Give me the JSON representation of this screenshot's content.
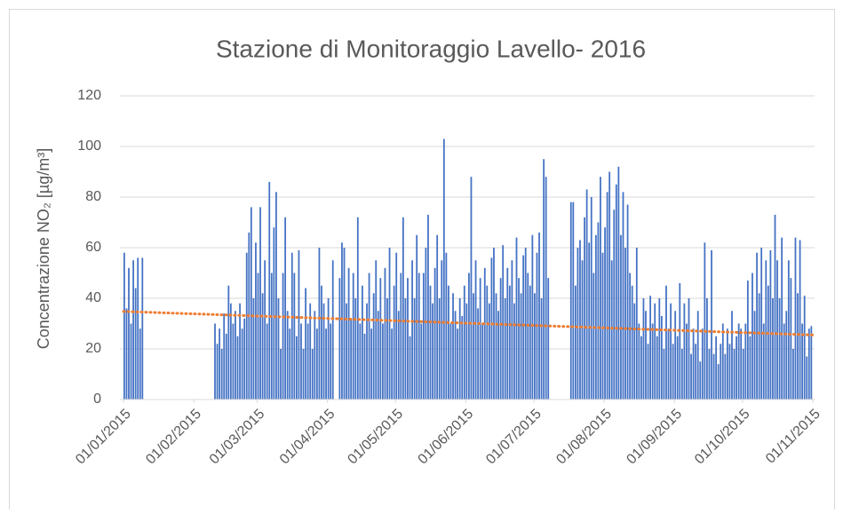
{
  "chart_data": {
    "type": "bar",
    "title": "Stazione di Monitoraggio Lavello- 2016",
    "y_label": "Concentrazione NO₂ [µg/m³]",
    "color": "#4472c4",
    "grid": true,
    "ylim": [
      0,
      120
    ],
    "yticks": [
      0,
      20,
      40,
      60,
      80,
      100,
      120
    ],
    "xlim": [
      "01/01/2015",
      "01/11/2015"
    ],
    "xticks": [
      "01/01/2015",
      "01/02/2015",
      "01/03/2015",
      "01/04/2015",
      "01/05/2015",
      "01/06/2015",
      "01/07/2015",
      "01/08/2015",
      "01/09/2015",
      "01/10/2015",
      "01/11/2015"
    ],
    "trendline": {
      "color": "#ed7d31",
      "values": [
        34.8,
        25.5
      ]
    },
    "x": [
      "01/01/2015",
      "02/01/2015",
      "03/01/2015",
      "04/01/2015",
      "05/01/2015",
      "06/01/2015",
      "07/01/2015",
      "08/01/2015",
      "09/01/2015",
      "10/01/2015",
      "11/01/2015",
      "12/01/2015",
      "13/01/2015",
      "14/01/2015",
      "15/01/2015",
      "16/01/2015",
      "17/01/2015",
      "18/01/2015",
      "19/01/2015",
      "20/01/2015",
      "21/01/2015",
      "22/01/2015",
      "23/01/2015",
      "24/01/2015",
      "25/01/2015",
      "26/01/2015",
      "27/01/2015",
      "28/01/2015",
      "29/01/2015",
      "30/01/2015",
      "31/01/2015",
      "01/02/2015",
      "02/02/2015",
      "03/02/2015",
      "04/02/2015",
      "05/02/2015",
      "06/02/2015",
      "07/02/2015",
      "08/02/2015",
      "09/02/2015",
      "10/02/2015",
      "11/02/2015",
      "12/02/2015",
      "13/02/2015",
      "14/02/2015",
      "15/02/2015",
      "16/02/2015",
      "17/02/2015",
      "18/02/2015",
      "19/02/2015",
      "20/02/2015",
      "21/02/2015",
      "22/02/2015",
      "23/02/2015",
      "24/02/2015",
      "25/02/2015",
      "26/02/2015",
      "27/02/2015",
      "28/02/2015",
      "01/03/2015",
      "02/03/2015",
      "03/03/2015",
      "04/03/2015",
      "05/03/2015",
      "06/03/2015",
      "07/03/2015",
      "08/03/2015",
      "09/03/2015",
      "10/03/2015",
      "11/03/2015",
      "12/03/2015",
      "13/03/2015",
      "14/03/2015",
      "15/03/2015",
      "16/03/2015",
      "17/03/2015",
      "18/03/2015",
      "19/03/2015",
      "20/03/2015",
      "21/03/2015",
      "22/03/2015",
      "23/03/2015",
      "24/03/2015",
      "25/03/2015",
      "26/03/2015",
      "27/03/2015",
      "28/03/2015",
      "29/03/2015",
      "30/03/2015",
      "31/03/2015",
      "01/04/2015",
      "02/04/2015",
      "03/04/2015",
      "04/04/2015",
      "05/04/2015",
      "06/04/2015",
      "07/04/2015",
      "08/04/2015",
      "09/04/2015",
      "10/04/2015",
      "11/04/2015",
      "12/04/2015",
      "13/04/2015",
      "14/04/2015",
      "15/04/2015",
      "16/04/2015",
      "17/04/2015",
      "18/04/2015",
      "19/04/2015",
      "20/04/2015",
      "21/04/2015",
      "22/04/2015",
      "23/04/2015",
      "24/04/2015",
      "25/04/2015",
      "26/04/2015",
      "27/04/2015",
      "28/04/2015",
      "29/04/2015",
      "30/04/2015",
      "01/05/2015",
      "02/05/2015",
      "03/05/2015",
      "04/05/2015",
      "05/05/2015",
      "06/05/2015",
      "07/05/2015",
      "08/05/2015",
      "09/05/2015",
      "10/05/2015",
      "11/05/2015",
      "12/05/2015",
      "13/05/2015",
      "14/05/2015",
      "15/05/2015",
      "16/05/2015",
      "17/05/2015",
      "18/05/2015",
      "19/05/2015",
      "20/05/2015",
      "21/05/2015",
      "22/05/2015",
      "23/05/2015",
      "24/05/2015",
      "25/05/2015",
      "26/05/2015",
      "27/05/2015",
      "28/05/2015",
      "29/05/2015",
      "30/05/2015",
      "31/05/2015",
      "01/06/2015",
      "02/06/2015",
      "03/06/2015",
      "04/06/2015",
      "05/06/2015",
      "06/06/2015",
      "07/06/2015",
      "08/06/2015",
      "09/06/2015",
      "10/06/2015",
      "11/06/2015",
      "12/06/2015",
      "13/06/2015",
      "14/06/2015",
      "15/06/2015",
      "16/06/2015",
      "17/06/2015",
      "18/06/2015",
      "19/06/2015",
      "20/06/2015",
      "21/06/2015",
      "22/06/2015",
      "23/06/2015",
      "24/06/2015",
      "25/06/2015",
      "26/06/2015",
      "27/06/2015",
      "28/06/2015",
      "29/06/2015",
      "30/06/2015",
      "01/07/2015",
      "02/07/2015",
      "03/07/2015",
      "04/07/2015",
      "05/07/2015",
      "06/07/2015",
      "07/07/2015",
      "08/07/2015",
      "09/07/2015",
      "10/07/2015",
      "11/07/2015",
      "12/07/2015",
      "13/07/2015",
      "14/07/2015",
      "15/07/2015",
      "16/07/2015",
      "17/07/2015",
      "18/07/2015",
      "19/07/2015",
      "20/07/2015",
      "21/07/2015",
      "22/07/2015",
      "23/07/2015",
      "24/07/2015",
      "25/07/2015",
      "26/07/2015",
      "27/07/2015",
      "28/07/2015",
      "29/07/2015",
      "30/07/2015",
      "31/07/2015",
      "01/08/2015",
      "02/08/2015",
      "03/08/2015",
      "04/08/2015",
      "05/08/2015",
      "06/08/2015",
      "07/08/2015",
      "08/08/2015",
      "09/08/2015",
      "10/08/2015",
      "11/08/2015",
      "12/08/2015",
      "13/08/2015",
      "14/08/2015",
      "15/08/2015",
      "16/08/2015",
      "17/08/2015",
      "18/08/2015",
      "19/08/2015",
      "20/08/2015",
      "21/08/2015",
      "22/08/2015",
      "23/08/2015",
      "24/08/2015",
      "25/08/2015",
      "26/08/2015",
      "27/08/2015",
      "28/08/2015",
      "29/08/2015",
      "30/08/2015",
      "31/08/2015",
      "01/09/2015",
      "02/09/2015",
      "03/09/2015",
      "04/09/2015",
      "05/09/2015",
      "06/09/2015",
      "07/09/2015",
      "08/09/2015",
      "09/09/2015",
      "10/09/2015",
      "11/09/2015",
      "12/09/2015",
      "13/09/2015",
      "14/09/2015",
      "15/09/2015",
      "16/09/2015",
      "17/09/2015",
      "18/09/2015",
      "19/09/2015",
      "20/09/2015",
      "21/09/2015",
      "22/09/2015",
      "23/09/2015",
      "24/09/2015",
      "25/09/2015",
      "26/09/2015",
      "27/09/2015",
      "28/09/2015",
      "29/09/2015",
      "30/09/2015",
      "01/10/2015",
      "02/10/2015",
      "03/10/2015",
      "04/10/2015",
      "05/10/2015",
      "06/10/2015",
      "07/10/2015",
      "08/10/2015",
      "09/10/2015",
      "10/10/2015",
      "11/10/2015",
      "12/10/2015",
      "13/10/2015",
      "14/10/2015",
      "15/10/2015",
      "16/10/2015",
      "17/10/2015",
      "18/10/2015",
      "19/10/2015",
      "20/10/2015",
      "21/10/2015",
      "22/10/2015",
      "23/10/2015",
      "24/10/2015",
      "25/10/2015",
      "26/10/2015",
      "27/10/2015",
      "28/10/2015",
      "29/10/2015",
      "30/10/2015",
      "31/10/2015"
    ],
    "values": [
      58,
      36,
      52,
      30,
      55,
      44,
      56,
      28,
      56,
      null,
      null,
      null,
      null,
      null,
      null,
      null,
      null,
      null,
      null,
      null,
      null,
      null,
      null,
      null,
      null,
      null,
      null,
      null,
      null,
      null,
      null,
      null,
      null,
      null,
      null,
      null,
      null,
      null,
      null,
      null,
      30,
      22,
      28,
      20,
      34,
      26,
      45,
      38,
      30,
      35,
      25,
      38,
      28,
      32,
      58,
      66,
      76,
      40,
      62,
      50,
      76,
      42,
      55,
      30,
      86,
      50,
      68,
      82,
      40,
      20,
      50,
      72,
      35,
      28,
      58,
      50,
      25,
      59,
      30,
      20,
      44,
      30,
      38,
      20,
      35,
      28,
      60,
      45,
      38,
      28,
      40,
      30,
      55,
      null,
      null,
      48,
      62,
      60,
      38,
      52,
      32,
      50,
      40,
      72,
      30,
      45,
      26,
      38,
      50,
      28,
      42,
      55,
      35,
      48,
      30,
      52,
      40,
      60,
      28,
      45,
      58,
      35,
      50,
      72,
      40,
      48,
      25,
      55,
      40,
      65,
      50,
      30,
      50,
      60,
      73,
      45,
      38,
      52,
      65,
      40,
      55,
      103,
      58,
      45,
      30,
      42,
      35,
      28,
      40,
      33,
      45,
      38,
      50,
      88,
      42,
      55,
      36,
      48,
      30,
      52,
      45,
      38,
      56,
      60,
      42,
      35,
      48,
      61,
      40,
      52,
      45,
      55,
      38,
      64,
      48,
      42,
      57,
      60,
      50,
      45,
      65,
      42,
      58,
      66,
      40,
      95,
      88,
      48,
      null,
      null,
      null,
      null,
      null,
      null,
      null,
      null,
      null,
      78,
      78,
      45,
      60,
      63,
      55,
      72,
      83,
      62,
      80,
      50,
      65,
      70,
      88,
      58,
      68,
      82,
      90,
      55,
      75,
      85,
      92,
      65,
      82,
      60,
      77,
      50,
      45,
      38,
      60,
      30,
      25,
      40,
      35,
      22,
      41,
      30,
      38,
      25,
      40,
      33,
      20,
      45,
      28,
      38,
      22,
      35,
      25,
      46,
      20,
      38,
      30,
      40,
      18,
      28,
      22,
      35,
      15,
      28,
      62,
      40,
      20,
      59,
      18,
      25,
      14,
      22,
      30,
      18,
      28,
      22,
      35,
      20,
      25,
      30,
      28,
      20,
      30,
      47,
      25,
      50,
      35,
      58,
      42,
      60,
      30,
      55,
      45,
      59,
      40,
      73,
      55,
      40,
      64,
      30,
      35,
      55,
      48,
      20,
      64,
      42,
      63,
      30,
      41,
      17,
      28,
      29
    ]
  }
}
